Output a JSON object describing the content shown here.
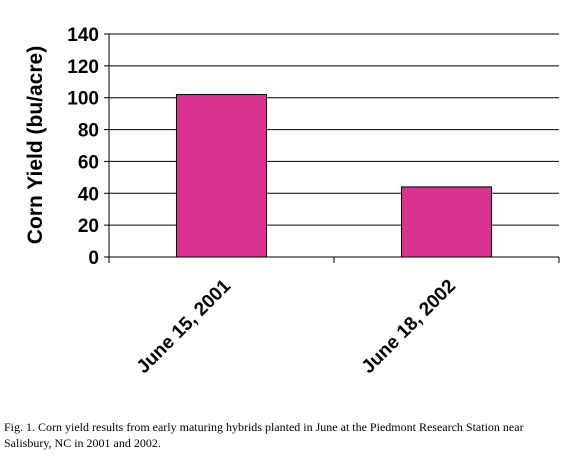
{
  "chart_data": {
    "type": "bar",
    "categories": [
      "June 15, 2001",
      "June 18, 2002"
    ],
    "values": [
      102,
      44
    ],
    "title": "",
    "xlabel": "",
    "ylabel": "Corn Yield (bu/acre)",
    "ylim": [
      0,
      140
    ],
    "yticks": [
      0,
      20,
      40,
      60,
      80,
      100,
      120,
      140
    ],
    "grid": true,
    "legend": "none",
    "bar_color": "#D9338F"
  },
  "caption": "Fig. 1.  Corn yield results from early maturing hybrids planted in June at the Piedmont Research Station near Salisbury, NC in 2001 and 2002."
}
